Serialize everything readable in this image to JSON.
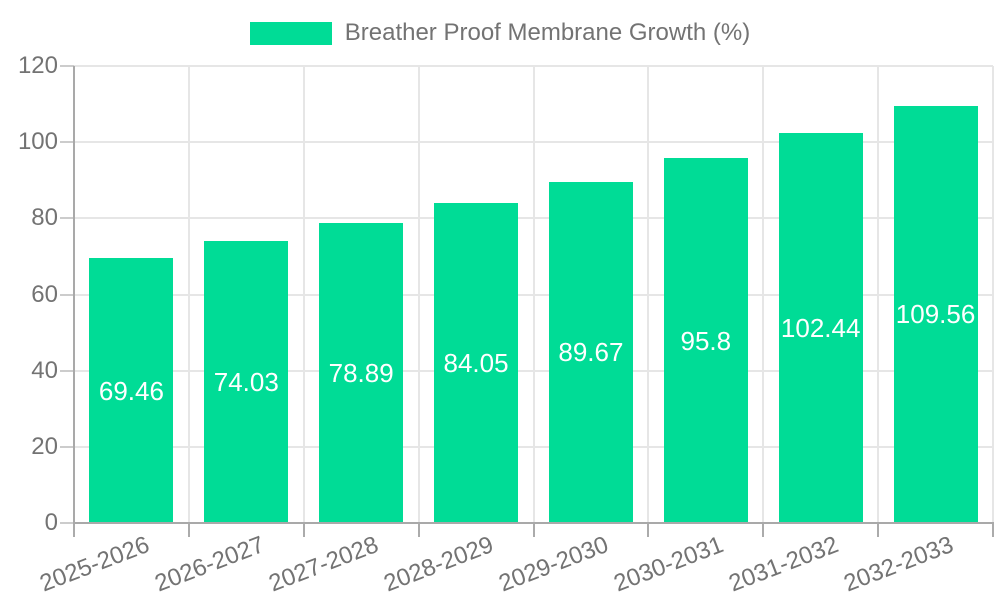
{
  "legend": {
    "items": [
      {
        "label": "Breather Proof Membrane Growth (%)",
        "color": "#00DC96"
      }
    ]
  },
  "chart_data": {
    "type": "bar",
    "title": "Breather Proof Membrane Growth (%)",
    "categories": [
      "2025-2026",
      "2026-2027",
      "2027-2028",
      "2028-2029",
      "2029-2030",
      "2030-2031",
      "2031-2032",
      "2032-2033"
    ],
    "values": [
      69.46,
      74.03,
      78.89,
      84.05,
      89.67,
      95.8,
      102.44,
      109.56
    ],
    "value_labels": [
      "69.46",
      "74.03",
      "78.89",
      "84.05",
      "89.67",
      "95.8",
      "102.44",
      "109.56"
    ],
    "xlabel": "",
    "ylabel": "",
    "ylim": [
      0,
      120
    ],
    "yticks": [
      0,
      20,
      40,
      60,
      80,
      100,
      120
    ],
    "grid": true,
    "legend_position": "top",
    "bar_color": "#00DC96",
    "value_label_color": "#ffffff",
    "axis_text_color": "#737373",
    "grid_color": "#e6e6e6",
    "axis_line_color": "#a9a9a9",
    "background": "#ffffff"
  }
}
